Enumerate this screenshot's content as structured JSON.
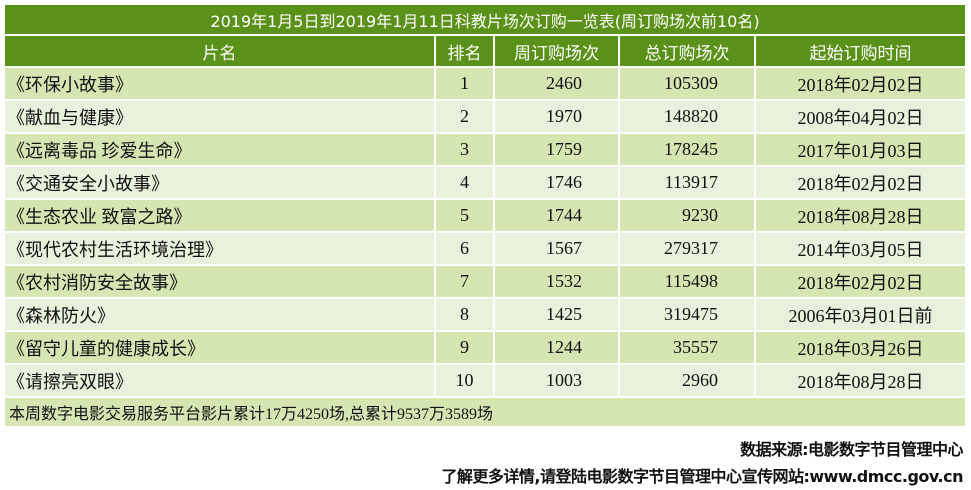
{
  "table": {
    "title": "2019年1月5日到2019年1月11日科教片场次订购一览表(周订购场次前10名)",
    "headers": [
      "片名",
      "排名",
      "周订购场次",
      "总订购场次",
      "起始订购时间"
    ],
    "rows": [
      [
        "《环保小故事》",
        "1",
        "2460",
        "105309",
        "2018年02月02日"
      ],
      [
        "《献血与健康》",
        "2",
        "1970",
        "148820",
        "2008年04月02日"
      ],
      [
        "《远离毒品 珍爱生命》",
        "3",
        "1759",
        "178245",
        "2017年01月03日"
      ],
      [
        "《交通安全小故事》",
        "4",
        "1746",
        "113917",
        "2018年02月02日"
      ],
      [
        "《生态农业 致富之路》",
        "5",
        "1744",
        "9230",
        "2018年08月28日"
      ],
      [
        "《现代农村生活环境治理》",
        "6",
        "1567",
        "279317",
        "2014年03月05日"
      ],
      [
        "《农村消防安全故事》",
        "7",
        "1532",
        "115498",
        "2018年02月02日"
      ],
      [
        "《森林防火》",
        "8",
        "1425",
        "319475",
        "2006年03月01日前"
      ],
      [
        "《留守儿童的健康成长》",
        "9",
        "1244",
        "35557",
        "2018年03月26日"
      ],
      [
        "《请擦亮双眼》",
        "10",
        "1003",
        "2960",
        "2018年08月28日"
      ]
    ],
    "footer": "本周数字电影交易服务平台影片累计17万4250场,总累计9537万3589场"
  },
  "notes": {
    "source": "数据来源:电影数字节目管理中心",
    "more": "了解更多详情,请登陆电影数字节目管理中心宣传网站:www.dmcc.gov.cn"
  },
  "colors": {
    "header": "#5a9219",
    "row_odd": "#d5e6b3",
    "row_even": "#e9f1dc"
  }
}
